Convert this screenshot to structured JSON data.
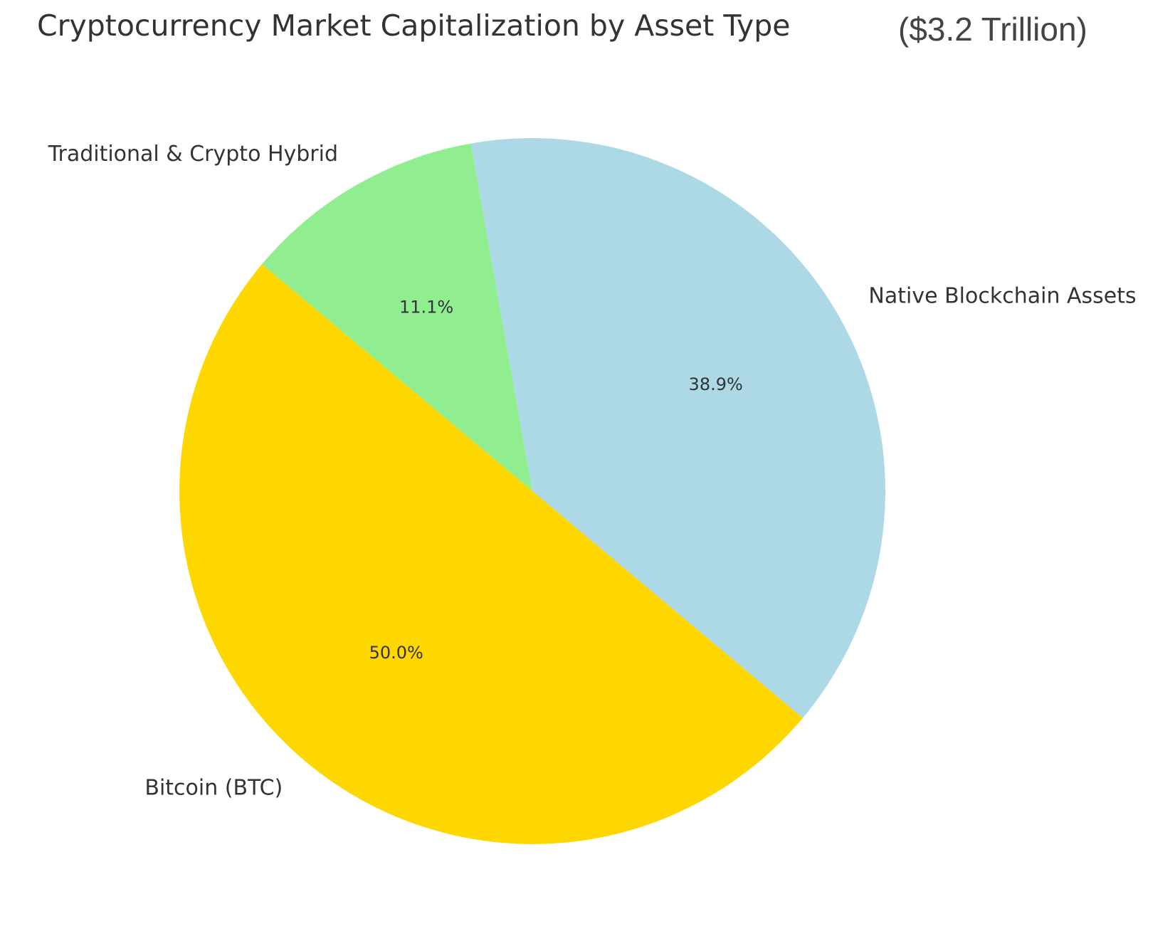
{
  "chart_data": {
    "type": "pie",
    "title": "Cryptocurrency Market Capitalization by Asset Type",
    "subtitle": "($3.2 Trillion)",
    "categories": [
      "Native Blockchain Assets",
      "Traditional & Crypto Hybrid",
      "Bitcoin (BTC)"
    ],
    "values": [
      38.9,
      11.1,
      50.0
    ],
    "value_labels": [
      "38.9%",
      "11.1%",
      "50.0%"
    ],
    "colors": [
      "#ADD8E6",
      "#90EE90",
      "#FFD700"
    ],
    "start_angle_deg": -40,
    "direction": "counterclockwise",
    "legend": "none"
  }
}
